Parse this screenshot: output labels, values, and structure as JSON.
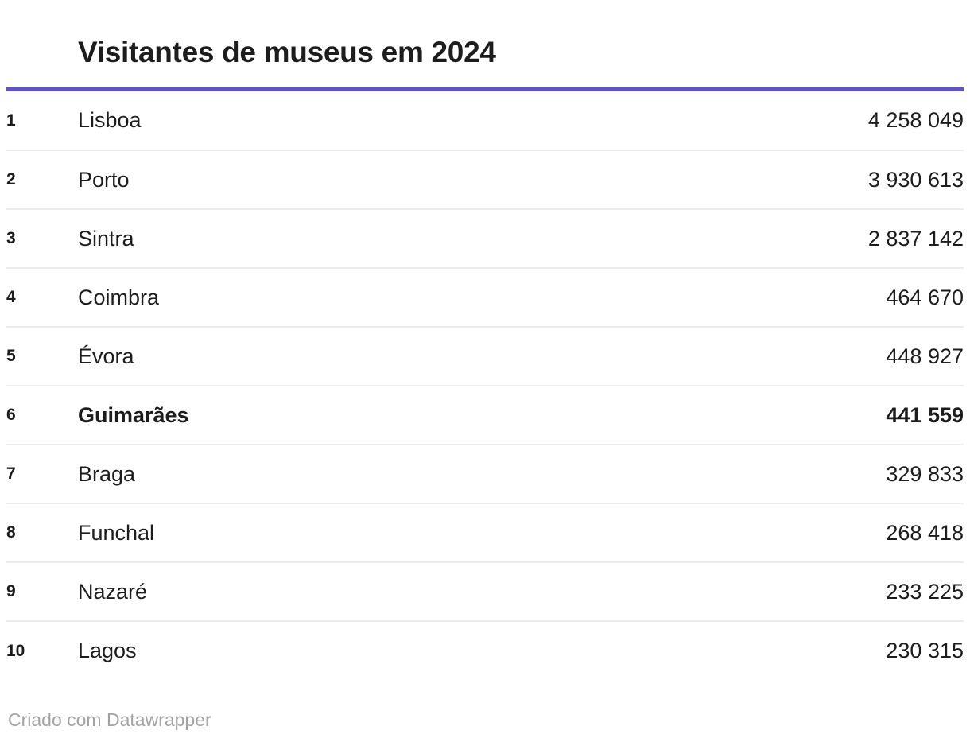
{
  "header": {
    "title": "Visitantes de museus em 2024"
  },
  "accent_color": "#5f55be",
  "table": {
    "rows": [
      {
        "rank": "1",
        "city": "Lisboa",
        "value": "4 258 049",
        "bold": false
      },
      {
        "rank": "2",
        "city": "Porto",
        "value": "3 930 613",
        "bold": false
      },
      {
        "rank": "3",
        "city": "Sintra",
        "value": "2 837 142",
        "bold": false
      },
      {
        "rank": "4",
        "city": "Coimbra",
        "value": "464 670",
        "bold": false
      },
      {
        "rank": "5",
        "city": "Évora",
        "value": "448 927",
        "bold": false
      },
      {
        "rank": "6",
        "city": "Guimarães",
        "value": "441 559",
        "bold": true
      },
      {
        "rank": "7",
        "city": "Braga",
        "value": "329 833",
        "bold": false
      },
      {
        "rank": "8",
        "city": "Funchal",
        "value": "268 418",
        "bold": false
      },
      {
        "rank": "9",
        "city": "Nazaré",
        "value": "233 225",
        "bold": false
      },
      {
        "rank": "10",
        "city": "Lagos",
        "value": "230 315",
        "bold": false
      }
    ]
  },
  "footer": {
    "attribution": "Criado com Datawrapper"
  },
  "chart_data": {
    "type": "table",
    "title": "Visitantes de museus em 2024",
    "categories": [
      "Lisboa",
      "Porto",
      "Sintra",
      "Coimbra",
      "Évora",
      "Guimarães",
      "Braga",
      "Funchal",
      "Nazaré",
      "Lagos"
    ],
    "values": [
      4258049,
      3930613,
      2837142,
      464670,
      448927,
      441559,
      329833,
      268418,
      233225,
      230315
    ],
    "highlighted_row": "Guimarães",
    "value_format": "space-separated thousands",
    "layout": {
      "rank_column": true,
      "values_aligned": "right",
      "grid": "horizontal row dividers"
    }
  }
}
